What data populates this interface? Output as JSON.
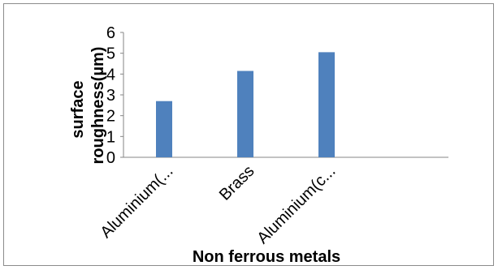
{
  "chart_data": {
    "type": "bar",
    "categories": [
      "Aluminium(...",
      "Brass",
      "Aluminium(c..."
    ],
    "values": [
      2.7,
      4.15,
      5.05
    ],
    "title": "",
    "xlabel": "Non ferrous metals",
    "ylabel_lines": [
      "surface",
      "roughness(µm)"
    ],
    "ylim": [
      0,
      6
    ],
    "yticks": [
      0,
      1,
      2,
      3,
      4,
      5,
      6
    ],
    "grid": false,
    "legend": "none",
    "colors": {
      "bar": "#4f81bd",
      "axis": "#868686",
      "frame": "#8c8c8c"
    }
  }
}
